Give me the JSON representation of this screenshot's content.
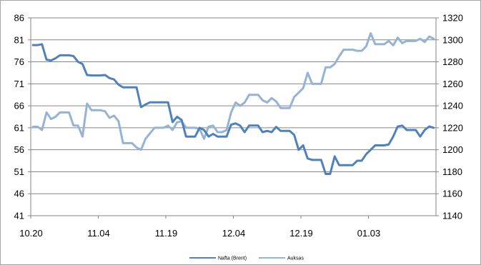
{
  "chart_data": {
    "type": "line",
    "x_tick_labels": [
      "10.20",
      "11.04",
      "11.19",
      "12.04",
      "12.19",
      "01.03"
    ],
    "y_left": {
      "ticks": [
        41,
        46,
        51,
        56,
        61,
        66,
        71,
        76,
        81,
        86
      ],
      "ylim": [
        41,
        86
      ]
    },
    "y_right": {
      "ticks": [
        1140,
        1160,
        1180,
        1200,
        1220,
        1240,
        1260,
        1280,
        1300,
        1320
      ],
      "ylim": [
        1140,
        1320
      ]
    },
    "grid": "horizontal",
    "legend_position": "bottom",
    "series": [
      {
        "name": "Nafta (Brent)",
        "axis": "left",
        "color": "#4f81bd",
        "values": [
          79.8,
          79.8,
          80.0,
          76.5,
          76.3,
          76.8,
          77.5,
          77.5,
          77.5,
          77.3,
          76.0,
          75.5,
          73.0,
          72.9,
          72.9,
          72.9,
          73.0,
          72.3,
          72.0,
          70.8,
          70.2,
          70.2,
          70.2,
          70.2,
          65.7,
          66.3,
          66.8,
          66.8,
          66.8,
          66.8,
          66.8,
          62.3,
          63.5,
          62.8,
          59.0,
          59.0,
          59.0,
          61.0,
          60.5,
          59.0,
          59.6,
          59.0,
          59.0,
          59.0,
          61.7,
          62.0,
          61.5,
          60.0,
          61.5,
          61.5,
          61.5,
          60.0,
          60.3,
          60.0,
          61.2,
          60.3,
          60.3,
          60.3,
          59.4,
          56.0,
          57.0,
          54.0,
          53.7,
          53.7,
          53.7,
          50.5,
          50.5,
          54.5,
          52.5,
          52.5,
          52.5,
          52.5,
          53.5,
          53.5,
          55.0,
          56.0,
          57.0,
          57.0,
          57.0,
          57.2,
          59.0,
          61.3,
          61.5,
          60.5,
          60.5,
          60.5,
          59.0,
          60.5,
          61.3,
          61.0
        ]
      },
      {
        "name": "Auksas",
        "axis": "right",
        "color": "#95b3d7",
        "values": [
          1221,
          1221,
          1218,
          1234,
          1228,
          1230,
          1234,
          1234,
          1234,
          1222,
          1222,
          1212,
          1242,
          1236,
          1236,
          1236,
          1235,
          1229,
          1231,
          1226,
          1206,
          1206,
          1206,
          1202,
          1200,
          1210,
          1215,
          1220,
          1220,
          1220,
          1222,
          1218,
          1225,
          1226,
          1220,
          1220,
          1220,
          1219,
          1210,
          1221,
          1222,
          1216,
          1216,
          1218,
          1234,
          1243,
          1240,
          1243,
          1250,
          1250,
          1250,
          1245,
          1243,
          1247,
          1244,
          1238,
          1238,
          1238,
          1248,
          1252,
          1256,
          1270,
          1260,
          1260,
          1260,
          1275,
          1275,
          1278,
          1285,
          1291,
          1291,
          1291,
          1290,
          1290,
          1294,
          1306,
          1296,
          1296,
          1296,
          1299,
          1295,
          1302,
          1297,
          1299,
          1299,
          1299,
          1301,
          1298,
          1303,
          1301
        ]
      }
    ]
  }
}
